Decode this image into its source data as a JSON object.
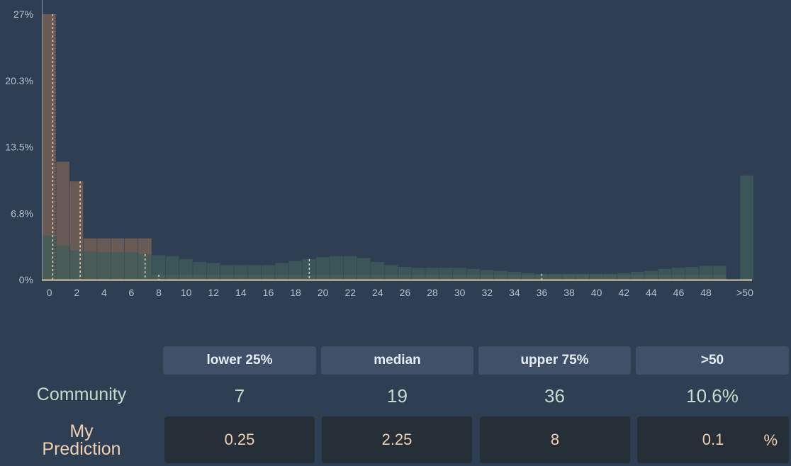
{
  "chart_data": {
    "type": "bar",
    "y_ticks": [
      "27%",
      "20.3%",
      "13.5%",
      "6.8%",
      "0%"
    ],
    "ylim": [
      0,
      27
    ],
    "x_ticks": [
      "0",
      "2",
      "4",
      "6",
      "8",
      "10",
      "12",
      "14",
      "16",
      "18",
      "20",
      "22",
      "24",
      "26",
      "28",
      "30",
      "32",
      "34",
      "36",
      "38",
      "40",
      "42",
      "44",
      "46",
      "48",
      ">50"
    ],
    "series": [
      {
        "role": "my_prediction",
        "color": "#6a5a55",
        "bins": [
          {
            "x": 0,
            "v": 27
          },
          {
            "x": 1,
            "v": 12
          },
          {
            "x": 2,
            "v": 10
          },
          {
            "x": 3,
            "v": 4.2
          },
          {
            "x": 4,
            "v": 4.2
          },
          {
            "x": 5,
            "v": 4.2
          },
          {
            "x": 6,
            "v": 4.2
          },
          {
            "x": 7,
            "v": 4.2
          },
          {
            "x": 8,
            "v": 0.5
          },
          {
            "x": 9,
            "v": 0.5
          },
          {
            "x": 10,
            "v": 0.5
          },
          {
            "x": 11,
            "v": 0.5
          },
          {
            "x": 12,
            "v": 0.5
          },
          {
            "x": 13,
            "v": 0.5
          },
          {
            "x": 14,
            "v": 0.5
          },
          {
            "x": 15,
            "v": 0.5
          },
          {
            "x": 16,
            "v": 0.5
          },
          {
            "x": 17,
            "v": 0.5
          },
          {
            "x": 18,
            "v": 0.5
          },
          {
            "x": 19,
            "v": 0.5
          },
          {
            "x": 20,
            "v": 0.5
          },
          {
            "x": 21,
            "v": 0.5
          },
          {
            "x": 22,
            "v": 0.5
          },
          {
            "x": 23,
            "v": 0.5
          },
          {
            "x": 24,
            "v": 0.5
          },
          {
            "x": 25,
            "v": 0.5
          },
          {
            "x": 26,
            "v": 0.5
          },
          {
            "x": 27,
            "v": 0.5
          },
          {
            "x": 28,
            "v": 0.5
          },
          {
            "x": 29,
            "v": 0.5
          },
          {
            "x": 30,
            "v": 0.5
          },
          {
            "x": 31,
            "v": 0.5
          },
          {
            "x": 32,
            "v": 0.5
          },
          {
            "x": 33,
            "v": 0.5
          },
          {
            "x": 34,
            "v": 0.5
          },
          {
            "x": 35,
            "v": 0.5
          },
          {
            "x": 36,
            "v": 0.5
          },
          {
            "x": 37,
            "v": 0.5
          },
          {
            "x": 38,
            "v": 0.5
          },
          {
            "x": 39,
            "v": 0.5
          },
          {
            "x": 40,
            "v": 0.5
          },
          {
            "x": 41,
            "v": 0.5
          },
          {
            "x": 42,
            "v": 0.5
          },
          {
            "x": 43,
            "v": 0.5
          },
          {
            "x": 44,
            "v": 0.5
          },
          {
            "x": 45,
            "v": 0.5
          },
          {
            "x": 46,
            "v": 0.5
          },
          {
            "x": 47,
            "v": 0.5
          },
          {
            "x": 48,
            "v": 0.5
          },
          {
            "x": 49,
            "v": 0.5
          },
          {
            "x": ">50",
            "v": 0.1
          }
        ]
      },
      {
        "role": "community",
        "color": "#405e5a",
        "bins": [
          {
            "x": 0,
            "v": 4.5
          },
          {
            "x": 1,
            "v": 3.5
          },
          {
            "x": 2,
            "v": 3.0
          },
          {
            "x": 3,
            "v": 2.9
          },
          {
            "x": 4,
            "v": 2.8
          },
          {
            "x": 5,
            "v": 2.8
          },
          {
            "x": 6,
            "v": 2.8
          },
          {
            "x": 7,
            "v": 2.6
          },
          {
            "x": 8,
            "v": 2.5
          },
          {
            "x": 9,
            "v": 2.4
          },
          {
            "x": 10,
            "v": 2.1
          },
          {
            "x": 11,
            "v": 1.8
          },
          {
            "x": 12,
            "v": 1.7
          },
          {
            "x": 13,
            "v": 1.5
          },
          {
            "x": 14,
            "v": 1.5
          },
          {
            "x": 15,
            "v": 1.5
          },
          {
            "x": 16,
            "v": 1.5
          },
          {
            "x": 17,
            "v": 1.7
          },
          {
            "x": 18,
            "v": 1.9
          },
          {
            "x": 19,
            "v": 2.1
          },
          {
            "x": 20,
            "v": 2.3
          },
          {
            "x": 21,
            "v": 2.4
          },
          {
            "x": 22,
            "v": 2.4
          },
          {
            "x": 23,
            "v": 2.2
          },
          {
            "x": 24,
            "v": 1.8
          },
          {
            "x": 25,
            "v": 1.5
          },
          {
            "x": 26,
            "v": 1.3
          },
          {
            "x": 27,
            "v": 1.2
          },
          {
            "x": 28,
            "v": 1.2
          },
          {
            "x": 29,
            "v": 1.2
          },
          {
            "x": 30,
            "v": 1.2
          },
          {
            "x": 31,
            "v": 1.1
          },
          {
            "x": 32,
            "v": 1.0
          },
          {
            "x": 33,
            "v": 0.9
          },
          {
            "x": 34,
            "v": 0.8
          },
          {
            "x": 35,
            "v": 0.7
          },
          {
            "x": 36,
            "v": 0.6
          },
          {
            "x": 37,
            "v": 0.6
          },
          {
            "x": 38,
            "v": 0.6
          },
          {
            "x": 39,
            "v": 0.6
          },
          {
            "x": 40,
            "v": 0.6
          },
          {
            "x": 41,
            "v": 0.6
          },
          {
            "x": 42,
            "v": 0.7
          },
          {
            "x": 43,
            "v": 0.8
          },
          {
            "x": 44,
            "v": 0.9
          },
          {
            "x": 45,
            "v": 1.1
          },
          {
            "x": 46,
            "v": 1.2
          },
          {
            "x": 47,
            "v": 1.3
          },
          {
            "x": 48,
            "v": 1.4
          },
          {
            "x": 49,
            "v": 1.4
          },
          {
            "x": ">50",
            "v": 10.6
          }
        ]
      }
    ],
    "markers": {
      "my_prediction": [
        0.25,
        2.25,
        8
      ],
      "community": [
        7,
        19,
        36
      ]
    }
  },
  "table": {
    "headers": [
      "lower 25%",
      "median",
      "upper 75%",
      ">50"
    ],
    "community_label": "Community",
    "community_values": [
      "7",
      "19",
      "36",
      "10.6%"
    ],
    "prediction_label_line1": "My",
    "prediction_label_line2": "Prediction",
    "prediction_values": [
      "0.25",
      "2.25",
      "8",
      "0.1"
    ],
    "percent_sign": "%"
  },
  "colors": {
    "background": "#2e3f53",
    "community": "#c3dccc",
    "prediction": "#f0cfb2"
  }
}
